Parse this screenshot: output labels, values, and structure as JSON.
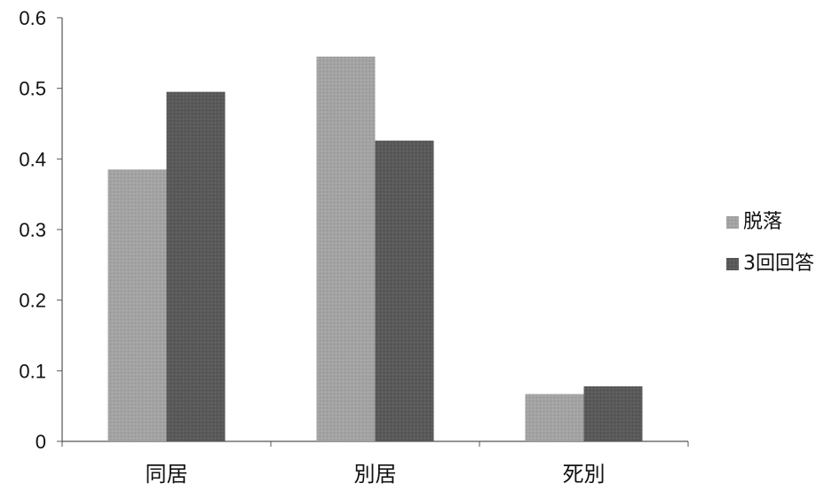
{
  "chart_data": {
    "type": "bar",
    "title": "",
    "xlabel": "",
    "ylabel": "",
    "categories": [
      "同居",
      "別居",
      "死別"
    ],
    "series": [
      {
        "name": "脱落",
        "values": [
          0.385,
          0.545,
          0.067
        ],
        "color": "#a0a0a0"
      },
      {
        "name": "3回回答",
        "values": [
          0.495,
          0.426,
          0.078
        ],
        "color": "#595959"
      }
    ],
    "ylim": [
      0,
      0.6
    ],
    "yticks": [
      "0",
      "0.1",
      "0.2",
      "0.3",
      "0.4",
      "0.5",
      "0.6"
    ],
    "grid": false,
    "legend_position": "right"
  }
}
